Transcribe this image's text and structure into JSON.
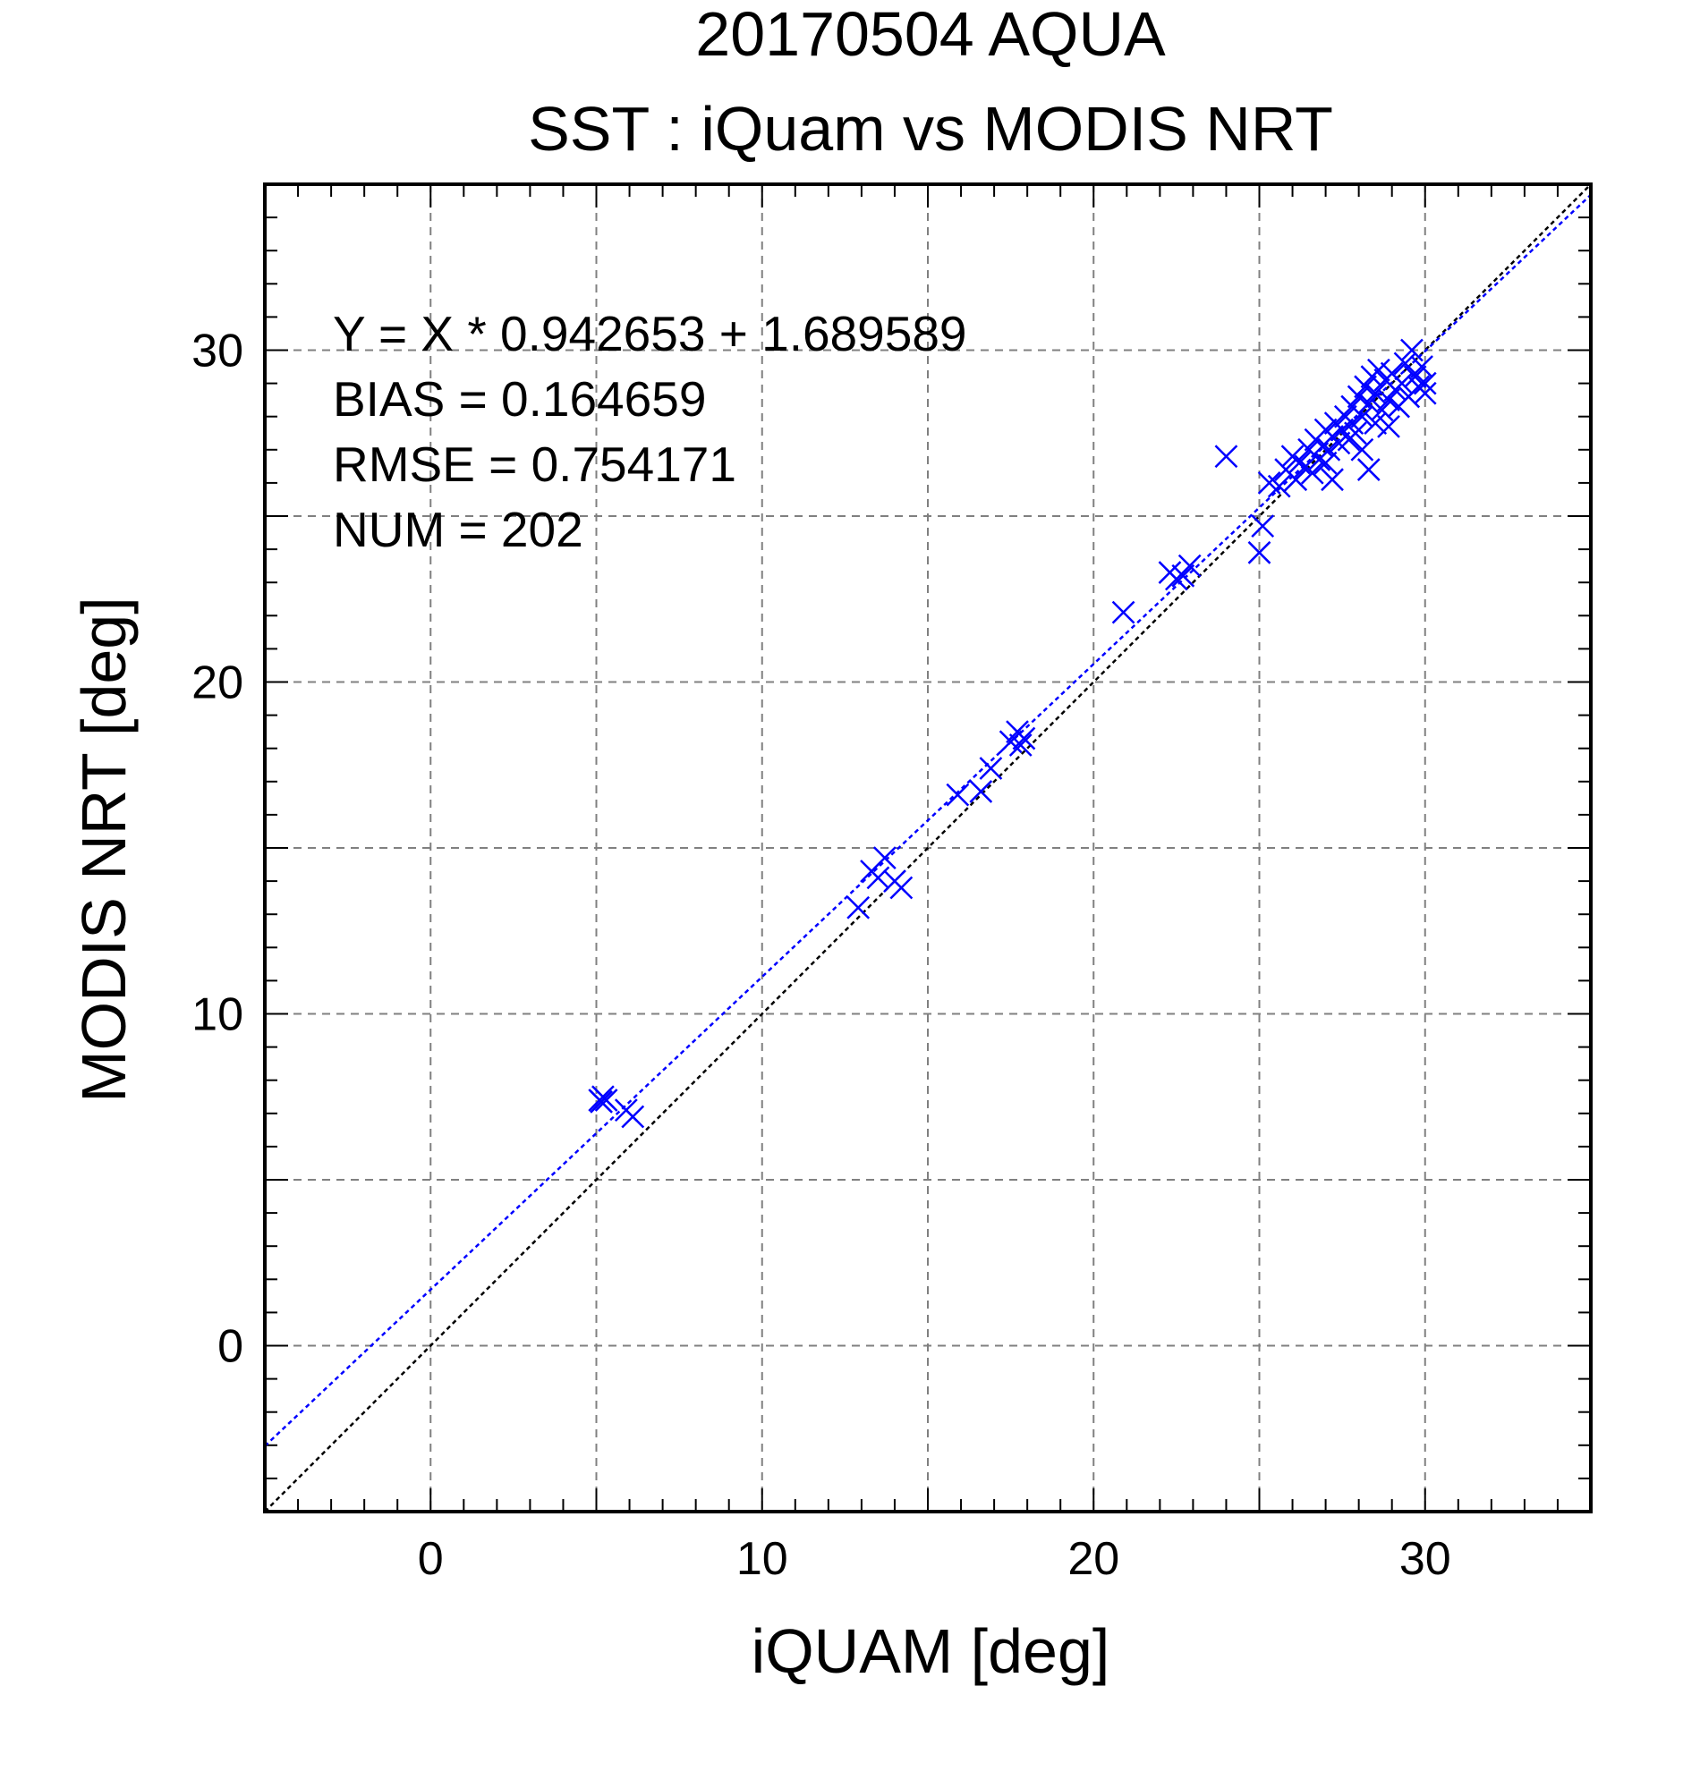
{
  "chart_data": {
    "type": "scatter",
    "title": "20170504 AQUA",
    "subtitle": "SST : iQuam vs MODIS NRT",
    "xlabel": "iQUAM [deg]",
    "ylabel": "MODIS NRT [deg]",
    "xlim": [
      -5,
      35
    ],
    "ylim": [
      -5,
      35
    ],
    "x_ticks": [
      0,
      10,
      20,
      30
    ],
    "y_ticks": [
      0,
      10,
      20,
      30
    ],
    "x_tick_labels": [
      "0",
      "10",
      "20",
      "30"
    ],
    "y_tick_labels": [
      "0",
      "10",
      "20",
      "30"
    ],
    "grid": true,
    "grid_step": 5,
    "minor_tick_step": 1,
    "marker": "x",
    "colors": {
      "points": "#0000ff",
      "fit_line": "#0000ff",
      "identity_line": "#000000",
      "grid": "#808080"
    },
    "stats": [
      "Y = X * 0.942653 + 1.689589",
      "BIAS = 0.164659",
      "RMSE = 0.754171",
      "NUM = 202"
    ],
    "fit": {
      "slope": 0.942653,
      "intercept": 1.689589
    },
    "identity": {
      "slope": 1,
      "intercept": 0
    },
    "points": [
      [
        5.1,
        7.4
      ],
      [
        5.2,
        7.5
      ],
      [
        5.3,
        7.4
      ],
      [
        5.15,
        7.35
      ],
      [
        5.9,
        7.1
      ],
      [
        6.1,
        6.9
      ],
      [
        12.9,
        13.2
      ],
      [
        13.3,
        14.3
      ],
      [
        13.5,
        14.1
      ],
      [
        13.7,
        14.7
      ],
      [
        14.0,
        14.0
      ],
      [
        14.2,
        13.8
      ],
      [
        15.9,
        16.6
      ],
      [
        16.6,
        16.7
      ],
      [
        16.9,
        17.4
      ],
      [
        17.5,
        18.2
      ],
      [
        17.7,
        18.5
      ],
      [
        17.8,
        18.1
      ],
      [
        17.9,
        18.3
      ],
      [
        20.9,
        22.1
      ],
      [
        22.3,
        23.3
      ],
      [
        22.5,
        23.1
      ],
      [
        22.7,
        23.2
      ],
      [
        22.9,
        23.5
      ],
      [
        24.0,
        26.8
      ],
      [
        25.0,
        23.9
      ],
      [
        25.1,
        24.7
      ],
      [
        25.3,
        26.0
      ],
      [
        25.6,
        25.9
      ],
      [
        25.8,
        26.4
      ],
      [
        26.0,
        26.8
      ],
      [
        26.1,
        26.1
      ],
      [
        26.2,
        26.6
      ],
      [
        26.4,
        26.5
      ],
      [
        26.5,
        27.0
      ],
      [
        26.6,
        26.3
      ],
      [
        26.7,
        27.3
      ],
      [
        26.8,
        26.7
      ],
      [
        26.9,
        27.1
      ],
      [
        27.0,
        26.6
      ],
      [
        27.0,
        27.6
      ],
      [
        27.1,
        27.0
      ],
      [
        27.2,
        26.1
      ],
      [
        27.2,
        27.4
      ],
      [
        27.3,
        27.8
      ],
      [
        27.4,
        27.2
      ],
      [
        27.5,
        27.6
      ],
      [
        27.6,
        28.0
      ],
      [
        27.7,
        27.3
      ],
      [
        27.8,
        27.8
      ],
      [
        27.8,
        28.3
      ],
      [
        27.9,
        27.5
      ],
      [
        28.0,
        28.6
      ],
      [
        28.1,
        28.0
      ],
      [
        28.1,
        27.0
      ],
      [
        28.2,
        28.9
      ],
      [
        28.3,
        26.4
      ],
      [
        28.3,
        28.4
      ],
      [
        28.4,
        29.2
      ],
      [
        28.5,
        28.7
      ],
      [
        28.5,
        27.8
      ],
      [
        28.6,
        29.4
      ],
      [
        28.7,
        28.2
      ],
      [
        28.8,
        29.1
      ],
      [
        28.9,
        28.5
      ],
      [
        28.9,
        27.7
      ],
      [
        29.0,
        29.3
      ],
      [
        29.1,
        28.8
      ],
      [
        29.2,
        28.3
      ],
      [
        29.3,
        29.0
      ],
      [
        29.4,
        29.6
      ],
      [
        29.5,
        28.6
      ],
      [
        29.6,
        30.0
      ],
      [
        29.7,
        29.2
      ],
      [
        29.8,
        28.9
      ],
      [
        29.9,
        29.5
      ],
      [
        30.0,
        29.0
      ],
      [
        30.0,
        28.7
      ]
    ]
  }
}
